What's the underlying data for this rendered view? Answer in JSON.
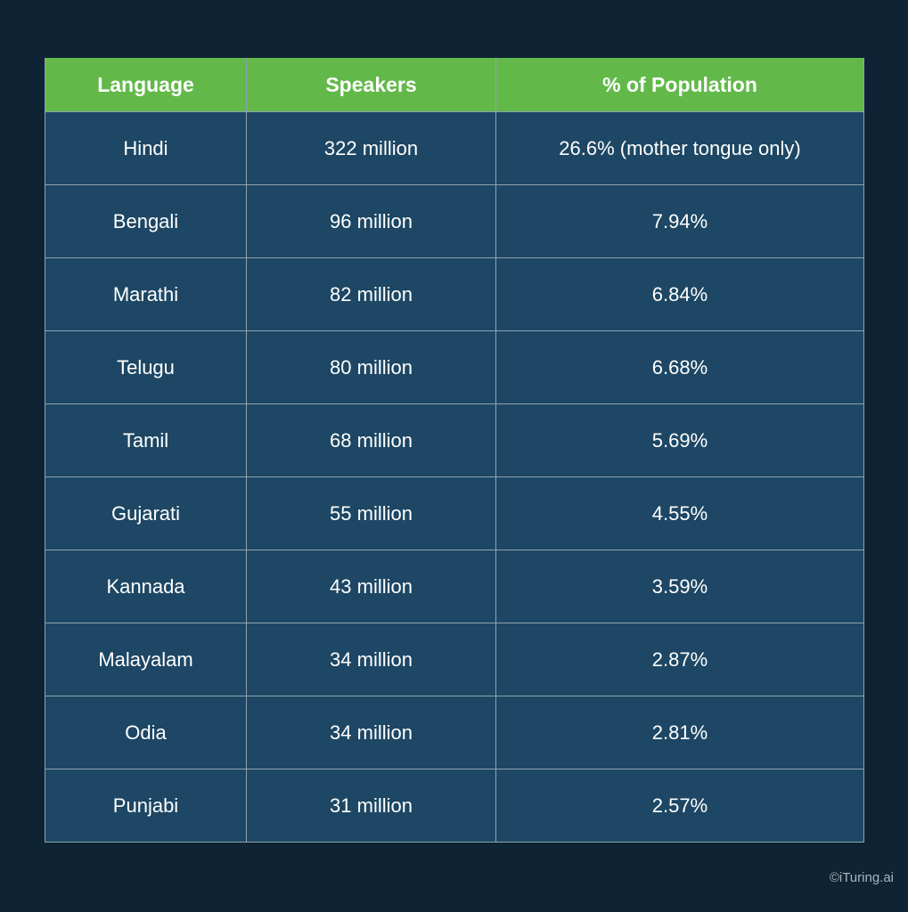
{
  "table": {
    "headers": [
      "Language",
      "Speakers",
      "% of Population"
    ],
    "rows": [
      [
        "Hindi",
        "322 million",
        "26.6% (mother tongue only)"
      ],
      [
        "Bengali",
        "96 million",
        "7.94%"
      ],
      [
        "Marathi",
        "82 million",
        "6.84%"
      ],
      [
        "Telugu",
        "80 million",
        "6.68%"
      ],
      [
        "Tamil",
        "68 million",
        "5.69%"
      ],
      [
        "Gujarati",
        "55 million",
        "4.55%"
      ],
      [
        "Kannada",
        "43 million",
        "3.59%"
      ],
      [
        "Malayalam",
        "34 million",
        "2.87%"
      ],
      [
        "Odia",
        "34 million",
        "2.81%"
      ],
      [
        "Punjabi",
        "31 million",
        "2.57%"
      ]
    ]
  },
  "credit": "©iTuring.ai",
  "colors": {
    "background": "#0e2334",
    "header": "#62b94a",
    "cell": "#1d4764"
  }
}
